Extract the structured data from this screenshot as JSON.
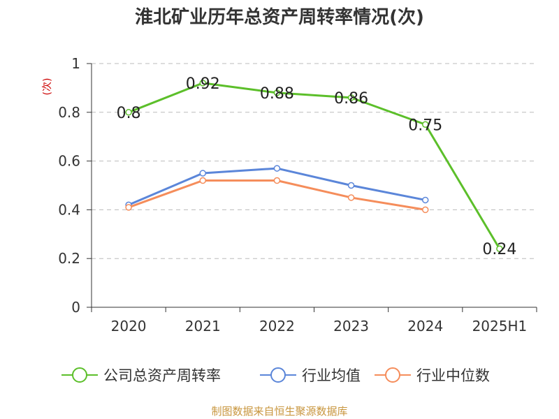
{
  "chart_data": {
    "type": "line",
    "title": "淮北矿业历年总资产周转率情况(次)",
    "ylabel": "(次)",
    "categories": [
      "2020",
      "2021",
      "2022",
      "2023",
      "2024",
      "2025H1"
    ],
    "ylim": [
      0,
      1
    ],
    "yticks": [
      0,
      0.2,
      0.4,
      0.6,
      0.8,
      1
    ],
    "ytick_labels": [
      "0",
      "0.2",
      "0.4",
      "0.6",
      "0.8",
      "1"
    ],
    "grid": true,
    "legend_position": "bottom",
    "series": [
      {
        "name": "公司总资产周转率",
        "color": "#5cbf2a",
        "values": [
          0.8,
          0.92,
          0.88,
          0.86,
          0.75,
          0.24
        ],
        "labels": [
          "0.8",
          "0.92",
          "0.88",
          "0.86",
          "0.75",
          "0.24"
        ]
      },
      {
        "name": "行业均值",
        "color": "#5b86d9",
        "values": [
          0.42,
          0.55,
          0.57,
          0.5,
          0.44,
          null
        ]
      },
      {
        "name": "行业中位数",
        "color": "#f58d5b",
        "values": [
          0.41,
          0.52,
          0.52,
          0.45,
          0.4,
          null
        ]
      }
    ],
    "ylabel_color": "#cc0000",
    "source": "制图数据来自恒生聚源数据库"
  }
}
